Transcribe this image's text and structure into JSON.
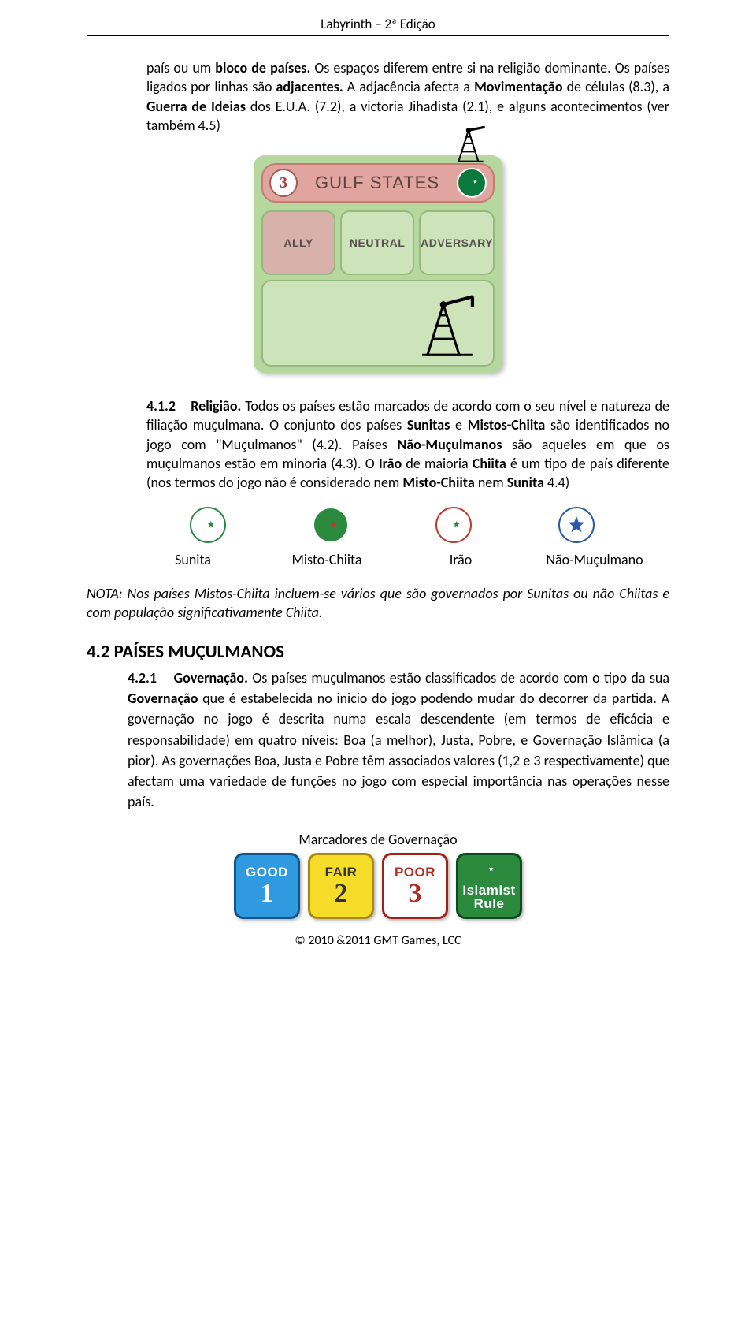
{
  "header": "Labyrinth – 2ª Edição",
  "para1_parts": {
    "t1": "país ou um ",
    "b1": "bloco de países.",
    "t2": " Os espaços diferem entre si na religião dominante. Os países ligados por linhas são ",
    "b2": "adjacentes.",
    "t3": " A adjacência afecta a ",
    "b3": "Movimentação",
    "t4": " de células (8.3), a ",
    "b4": "Guerra de Ideias",
    "t5": " dos E.U.A. (7.2), a victoria Jihadista (2.1), e alguns acontecimentos (ver também 4.5)"
  },
  "card": {
    "res": "3",
    "title": "GULF STATES",
    "ally": "ALLY",
    "neutral": "NEUTRAL",
    "adversary": "ADVERSARY",
    "colors": {
      "card_bg": "#b6d79d",
      "header_bg": "#e1a5a0",
      "box_alt": "#cde3b9",
      "flag_bg": "#0a7a3c"
    }
  },
  "para2_parts": {
    "n": "4.1.2",
    "h": "Religião.",
    "t1": " Todos os países estão marcados de acordo com o seu nível e natureza de filiação muçulmana. O conjunto dos países ",
    "b1": "Sunitas",
    "t2": " e ",
    "b2": "Mistos-Chiita",
    "t3": " são identificados no jogo com \"Muçulmanos\" (4.2). Países ",
    "b3": "Não-Muçulmanos",
    "t4": " são aqueles em que os muçulmanos estão em minoria (4.3). O ",
    "b4": "Irão",
    "t5": " de maioria ",
    "b5": "Chiita",
    "t6": " é um tipo de país diferente (nos termos do jogo não é considerado nem ",
    "b6": "Misto-Chiita",
    "t7": " nem ",
    "b7": "Sunita",
    "t8": " 4.4)"
  },
  "icons": [
    {
      "label": "Sunita",
      "bg": "#ffffff",
      "crescent": "#2b8a3e",
      "star": "#2b8a3e",
      "type": "crescent"
    },
    {
      "label": "Misto-Chiita",
      "bg": "#2b8a3e",
      "crescent": "#ffffff",
      "star": "#c0392b",
      "type": "crescent"
    },
    {
      "label": "Irão",
      "bg": "#ffffff",
      "crescent": "#c0392b",
      "star": "#2b8a3e",
      "type": "crescent"
    },
    {
      "label": "Não-Muçulmano",
      "bg": "#ffffff",
      "crescent": null,
      "star": "#2a5aa8",
      "type": "star"
    }
  ],
  "note": "NOTA: Nos países Mistos-Chiita incluem-se vários que são governados por Sunitas ou não Chiitas e com população significativamente Chiita.",
  "sec42": {
    "heading": "4.2 PAÍSES MUÇULMANOS",
    "n": "4.2.1",
    "h": "Governação.",
    "body_t1": " Os países muçulmanos estão classificados de acordo com o tipo da sua ",
    "body_b1": "Governação",
    "body_t2": " que é estabelecida no inicio do jogo podendo mudar do decorrer da partida. A governação no jogo é descrita numa escala descendente (em termos de eficácia e responsabilidade) em quatro níveis: Boa (a melhor), Justa, Pobre, e Governação Islâmica (a pior). As governações Boa, Justa e Pobre têm associados valores (1,2 e 3 respectivamente) que afectam uma variedade de funções no jogo com especial importância nas operações nesse país."
  },
  "gov_caption": "Marcadores de Governação",
  "markers": [
    {
      "label": "GOOD",
      "num": "1",
      "bg": "#2f9ae0",
      "border": "#10548a",
      "fg": "#ffffff"
    },
    {
      "label": "FAIR",
      "num": "2",
      "bg": "#f4dc28",
      "border": "#a88a10",
      "fg": "#333333"
    },
    {
      "label": "POOR",
      "num": "3",
      "bg": "#ffffff",
      "border": "#a0201a",
      "fg": "#b62a22"
    },
    {
      "label": "Islamist Rule",
      "num": "",
      "bg": "#2b8a3e",
      "border": "#0d4a1f",
      "fg": "#ffffff"
    }
  ],
  "footer": "© 2010 &2011 GMT Games, LCC"
}
